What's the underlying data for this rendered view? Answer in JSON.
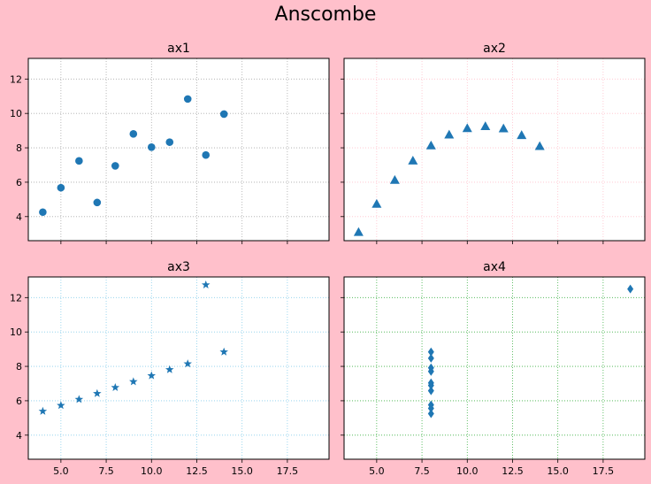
{
  "figure": {
    "title": "Anscombe",
    "background": "#ffc0cb",
    "marker_color": "#1f77b4"
  },
  "chart_data": [
    {
      "type": "scatter",
      "title": "ax1",
      "marker": "circle",
      "grid": true,
      "grid_color": "#a9a9a9",
      "xlim": [
        3.2,
        19.8
      ],
      "ylim": [
        2.6,
        13.2
      ],
      "x_ticks": [
        5.0,
        7.5,
        10.0,
        12.5,
        15.0,
        17.5
      ],
      "x_tick_labels": [
        "",
        "",
        "",
        "",
        "",
        ""
      ],
      "y_ticks": [
        4,
        6,
        8,
        10,
        12
      ],
      "y_tick_labels": [
        "4",
        "6",
        "8",
        "10",
        "12"
      ],
      "x": [
        10,
        8,
        13,
        9,
        11,
        14,
        6,
        4,
        12,
        7,
        5
      ],
      "y": [
        8.04,
        6.95,
        7.58,
        8.81,
        8.33,
        9.96,
        7.24,
        4.26,
        10.84,
        4.82,
        5.68
      ]
    },
    {
      "type": "scatter",
      "title": "ax2",
      "marker": "triangle",
      "grid": true,
      "grid_color": "#ffc0cb",
      "xlim": [
        3.2,
        19.8
      ],
      "ylim": [
        2.6,
        13.2
      ],
      "x_ticks": [
        5.0,
        7.5,
        10.0,
        12.5,
        15.0,
        17.5
      ],
      "x_tick_labels": [
        "",
        "",
        "",
        "",
        "",
        ""
      ],
      "y_ticks": [
        4,
        6,
        8,
        10,
        12
      ],
      "y_tick_labels": [
        "",
        "",
        "",
        "",
        ""
      ],
      "x": [
        10,
        8,
        13,
        9,
        11,
        14,
        6,
        4,
        12,
        7,
        5
      ],
      "y": [
        9.14,
        8.14,
        8.74,
        8.77,
        9.26,
        8.1,
        6.13,
        3.1,
        9.13,
        7.26,
        4.74
      ]
    },
    {
      "type": "scatter",
      "title": "ax3",
      "marker": "star",
      "grid": true,
      "grid_color": "#87ceeb",
      "xlim": [
        3.2,
        19.8
      ],
      "ylim": [
        2.6,
        13.2
      ],
      "x_ticks": [
        5.0,
        7.5,
        10.0,
        12.5,
        15.0,
        17.5
      ],
      "x_tick_labels": [
        "5.0",
        "7.5",
        "10.0",
        "12.5",
        "15.0",
        "17.5"
      ],
      "y_ticks": [
        4,
        6,
        8,
        10,
        12
      ],
      "y_tick_labels": [
        "4",
        "6",
        "8",
        "10",
        "12"
      ],
      "x": [
        10,
        8,
        13,
        9,
        11,
        14,
        6,
        4,
        12,
        7,
        5
      ],
      "y": [
        7.46,
        6.77,
        12.74,
        7.11,
        7.81,
        8.84,
        6.08,
        5.39,
        8.15,
        6.42,
        5.73
      ]
    },
    {
      "type": "scatter",
      "title": "ax4",
      "marker": "diamond",
      "grid": true,
      "grid_color": "#3cb043",
      "xlim": [
        3.2,
        19.8
      ],
      "ylim": [
        2.6,
        13.2
      ],
      "x_ticks": [
        5.0,
        7.5,
        10.0,
        12.5,
        15.0,
        17.5
      ],
      "x_tick_labels": [
        "5.0",
        "7.5",
        "10.0",
        "12.5",
        "15.0",
        "17.5"
      ],
      "y_ticks": [
        4,
        6,
        8,
        10,
        12
      ],
      "y_tick_labels": [
        "",
        "",
        "",
        "",
        ""
      ],
      "x": [
        8,
        8,
        8,
        8,
        8,
        8,
        8,
        19,
        8,
        8,
        8
      ],
      "y": [
        6.58,
        5.76,
        7.71,
        8.84,
        8.47,
        7.04,
        5.25,
        12.5,
        5.56,
        7.91,
        6.89
      ]
    }
  ]
}
